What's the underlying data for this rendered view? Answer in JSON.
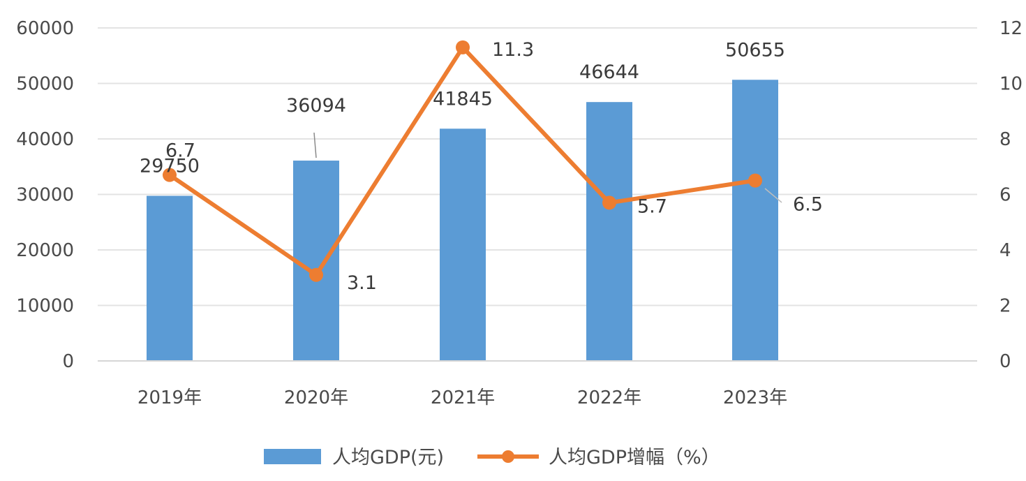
{
  "chart_data": {
    "type": "bar",
    "categories": [
      "2019年",
      "2020年",
      "2021年",
      "2022年",
      "2023年"
    ],
    "series": [
      {
        "name": "人均GDP(元)",
        "type": "bar",
        "axis": "left",
        "color": "#5b9bd5",
        "values": [
          29750,
          36094,
          41845,
          46644,
          50655
        ]
      },
      {
        "name": "人均GDP增幅（%）",
        "type": "line",
        "axis": "right",
        "color": "#ed7d31",
        "values": [
          6.7,
          3.1,
          11.3,
          5.7,
          6.5
        ]
      }
    ],
    "left_axis": {
      "ylim": [
        0,
        60000
      ],
      "ticks": [
        "0",
        "10000",
        "20000",
        "30000",
        "40000",
        "50000",
        "60000"
      ]
    },
    "right_axis": {
      "ylim": [
        0,
        12
      ],
      "ticks": [
        "0",
        "2",
        "4",
        "6",
        "8",
        "10",
        "12"
      ]
    },
    "bar_labels": [
      "29750",
      "36094",
      "41845",
      "46644",
      "50655"
    ],
    "line_labels": [
      "6.7",
      "3.1",
      "11.3",
      "5.7",
      "6.5"
    ],
    "grid": true,
    "legend_position": "bottom"
  }
}
